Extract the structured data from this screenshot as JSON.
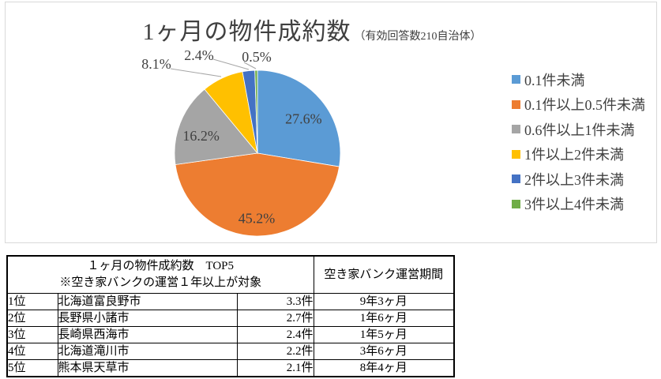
{
  "chart": {
    "title": "1ヶ月の物件成約数",
    "subtitle": "（有効回答数210自治体）",
    "border_color": "#d9d9d9",
    "text_color": "#404040"
  },
  "chart_data": [
    {
      "type": "pie",
      "title": "1ヶ月の物件成約数（有効回答数210自治体）",
      "categories": [
        "0.1件未満",
        "0.1件以上0.5件未満",
        "0.6件以上1件未満",
        "1件以上2件未満",
        "2件以上3件未満",
        "3件以上4件未満"
      ],
      "values": [
        27.6,
        45.2,
        16.2,
        8.1,
        2.4,
        0.5
      ],
      "unit": "%",
      "data_labels": [
        "27.6%",
        "45.2%",
        "16.2%",
        "8.1%",
        "2.4%",
        "0.5%"
      ],
      "colors": [
        "#5B9BD5",
        "#ED7D31",
        "#A5A5A5",
        "#FFC000",
        "#4472C4",
        "#70AD47"
      ],
      "legend_position": "right",
      "start_angle_deg": 0,
      "direction": "clockwise"
    },
    {
      "type": "table",
      "header": {
        "title_line1": "１ヶ月の物件成約数　TOP5",
        "title_line2": "※空き家バンクの運営１年以上が対象",
        "period_header": "空き家バンク運営期間"
      },
      "rows": [
        {
          "rank": "1位",
          "municipality": "北海道富良野市",
          "count": "3.3件",
          "period": "9年3ヶ月"
        },
        {
          "rank": "2位",
          "municipality": "長野県小諸市",
          "count": "2.7件",
          "period": "1年6ヶ月"
        },
        {
          "rank": "3位",
          "municipality": "長崎県西海市",
          "count": "2.4件",
          "period": "1年5ヶ月"
        },
        {
          "rank": "4位",
          "municipality": "北海道滝川市",
          "count": "2.2件",
          "period": "3年6ヶ月"
        },
        {
          "rank": "5位",
          "municipality": "熊本県天草市",
          "count": "2.1件",
          "period": "8年4ヶ月"
        }
      ]
    }
  ]
}
